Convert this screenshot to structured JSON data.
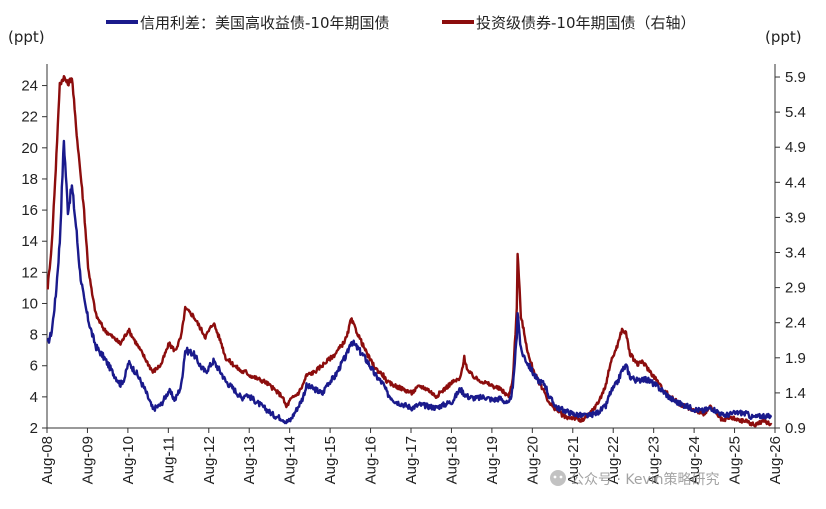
{
  "chart_data": {
    "type": "line",
    "title": "",
    "left_unit": "(ppt)",
    "right_unit": "(ppt)",
    "legend_position": "top",
    "x_range": [
      "2008-08",
      "2026-08"
    ],
    "x_tick_labels": [
      "Aug-08",
      "Aug-09",
      "Aug-10",
      "Aug-11",
      "Aug-12",
      "Aug-13",
      "Aug-14",
      "Aug-15",
      "Aug-16",
      "Aug-17",
      "Aug-18",
      "Aug-19",
      "Aug-20",
      "Aug-21",
      "Aug-22",
      "Aug-23",
      "Aug-24",
      "Aug-25",
      "Aug-26"
    ],
    "y_left": {
      "min": 2,
      "max": 25,
      "ticks": [
        2,
        4,
        6,
        8,
        10,
        12,
        14,
        16,
        18,
        20,
        22,
        24
      ]
    },
    "y_right": {
      "min": 0.9,
      "max": 6.0,
      "ticks": [
        "0.9",
        "1.4",
        "1.9",
        "2.4",
        "2.9",
        "3.4",
        "3.9",
        "4.4",
        "4.9",
        "5.4",
        "5.9"
      ]
    },
    "grid": false,
    "series": [
      {
        "name": "信用利差：美国高收益债-10年期国债",
        "axis": "left",
        "color": "#1a1a8c",
        "x": [
          2008.6,
          2008.7,
          2008.8,
          2008.9,
          2009.0,
          2009.1,
          2009.2,
          2009.3,
          2009.4,
          2009.5,
          2009.6,
          2009.7,
          2009.8,
          2010.0,
          2010.2,
          2010.4,
          2010.5,
          2010.6,
          2010.8,
          2011.0,
          2011.2,
          2011.4,
          2011.6,
          2011.75,
          2011.9,
          2012.0,
          2012.2,
          2012.4,
          2012.5,
          2012.7,
          2012.9,
          2013.0,
          2013.2,
          2013.4,
          2013.5,
          2013.6,
          2013.8,
          2014.0,
          2014.2,
          2014.4,
          2014.5,
          2014.6,
          2014.8,
          2014.9,
          2015.0,
          2015.2,
          2015.4,
          2015.5,
          2015.7,
          2015.9,
          2016.0,
          2016.1,
          2016.3,
          2016.5,
          2016.7,
          2016.9,
          2017.0,
          2017.2,
          2017.4,
          2017.6,
          2017.8,
          2018.0,
          2018.2,
          2018.4,
          2018.6,
          2018.8,
          2018.9,
          2019.0,
          2019.2,
          2019.4,
          2019.6,
          2019.8,
          2020.0,
          2020.1,
          2020.2,
          2020.22,
          2020.3,
          2020.5,
          2020.7,
          2020.9,
          2021.0,
          2021.2,
          2021.4,
          2021.6,
          2021.8,
          2022.0,
          2022.2,
          2022.4,
          2022.5,
          2022.7,
          2022.8,
          2022.9,
          2023.0,
          2023.2,
          2023.3,
          2023.5,
          2023.7,
          2023.8,
          2024.0,
          2024.2,
          2024.4,
          2024.6,
          2024.8,
          2025.0,
          2025.2,
          2025.3,
          2025.5,
          2025.7,
          2025.9,
          2026.0,
          2026.1,
          2026.3,
          2026.5
        ],
        "y": [
          7.4,
          8.2,
          10.5,
          14.0,
          20.5,
          16.0,
          17.5,
          15.0,
          12.0,
          10.2,
          9.0,
          8.0,
          7.2,
          6.5,
          5.6,
          4.8,
          5.2,
          6.2,
          5.5,
          4.5,
          3.2,
          3.5,
          4.4,
          3.8,
          4.7,
          7.0,
          6.8,
          5.9,
          5.6,
          6.3,
          5.5,
          5.0,
          4.5,
          3.9,
          4.2,
          4.0,
          3.6,
          3.2,
          2.8,
          2.6,
          2.4,
          2.5,
          3.4,
          3.9,
          4.7,
          4.5,
          4.2,
          4.8,
          5.3,
          6.3,
          6.7,
          7.6,
          7.0,
          6.3,
          5.4,
          4.8,
          4.2,
          3.7,
          3.5,
          3.3,
          3.5,
          3.4,
          3.3,
          3.5,
          3.7,
          4.5,
          4.2,
          4.0,
          3.9,
          4.0,
          3.8,
          3.9,
          3.5,
          4.5,
          8.0,
          9.5,
          7.0,
          6.0,
          5.1,
          4.8,
          4.0,
          3.3,
          3.1,
          2.9,
          2.8,
          2.8,
          3.0,
          3.4,
          4.2,
          5.0,
          5.7,
          6.0,
          5.3,
          5.0,
          5.2,
          5.0,
          4.6,
          4.4,
          3.9,
          3.6,
          3.4,
          3.2,
          3.1,
          3.3,
          3.0,
          2.8,
          2.9,
          3.0,
          2.9,
          2.7,
          2.7,
          2.8,
          2.7
        ]
      },
      {
        "name": "投资级债券-10年期国债（右轴）",
        "axis": "right",
        "color": "#8c0d0d",
        "x": [
          2008.6,
          2008.7,
          2008.8,
          2008.9,
          2009.0,
          2009.1,
          2009.2,
          2009.3,
          2009.4,
          2009.5,
          2009.6,
          2009.7,
          2009.8,
          2010.0,
          2010.2,
          2010.4,
          2010.5,
          2010.6,
          2010.8,
          2011.0,
          2011.2,
          2011.4,
          2011.6,
          2011.75,
          2011.9,
          2012.0,
          2012.2,
          2012.4,
          2012.5,
          2012.7,
          2012.9,
          2013.0,
          2013.2,
          2013.4,
          2013.5,
          2013.6,
          2013.8,
          2014.0,
          2014.2,
          2014.4,
          2014.5,
          2014.6,
          2014.8,
          2014.9,
          2015.0,
          2015.2,
          2015.4,
          2015.5,
          2015.7,
          2015.9,
          2016.0,
          2016.1,
          2016.3,
          2016.5,
          2016.7,
          2016.9,
          2017.0,
          2017.2,
          2017.4,
          2017.6,
          2017.8,
          2018.0,
          2018.2,
          2018.4,
          2018.6,
          2018.8,
          2018.9,
          2019.0,
          2019.2,
          2019.4,
          2019.6,
          2019.8,
          2020.0,
          2020.1,
          2020.2,
          2020.22,
          2020.3,
          2020.5,
          2020.7,
          2020.9,
          2021.0,
          2021.2,
          2021.4,
          2021.6,
          2021.8,
          2022.0,
          2022.2,
          2022.4,
          2022.5,
          2022.7,
          2022.8,
          2022.9,
          2023.0,
          2023.2,
          2023.3,
          2023.5,
          2023.7,
          2023.8,
          2024.0,
          2024.2,
          2024.4,
          2024.6,
          2024.8,
          2025.0,
          2025.2,
          2025.3,
          2025.5,
          2025.7,
          2025.9,
          2026.0,
          2026.1,
          2026.3,
          2026.5
        ],
        "y": [
          2.9,
          3.5,
          4.6,
          5.8,
          5.9,
          5.8,
          5.9,
          5.2,
          4.6,
          4.0,
          3.2,
          2.8,
          2.5,
          2.3,
          2.2,
          2.1,
          2.2,
          2.3,
          2.1,
          1.9,
          1.7,
          1.8,
          2.1,
          2.0,
          2.2,
          2.6,
          2.5,
          2.3,
          2.2,
          2.4,
          2.1,
          1.9,
          1.8,
          1.7,
          1.7,
          1.65,
          1.6,
          1.55,
          1.45,
          1.35,
          1.2,
          1.3,
          1.4,
          1.5,
          1.65,
          1.7,
          1.8,
          1.85,
          1.95,
          2.1,
          2.2,
          2.45,
          2.2,
          1.95,
          1.75,
          1.65,
          1.55,
          1.5,
          1.45,
          1.4,
          1.5,
          1.45,
          1.35,
          1.45,
          1.55,
          1.6,
          1.9,
          1.7,
          1.6,
          1.55,
          1.5,
          1.45,
          1.35,
          1.6,
          2.6,
          3.4,
          2.5,
          1.9,
          1.6,
          1.4,
          1.25,
          1.15,
          1.05,
          1.05,
          1.0,
          1.1,
          1.25,
          1.5,
          1.8,
          2.1,
          2.3,
          2.25,
          1.95,
          1.8,
          1.85,
          1.7,
          1.55,
          1.45,
          1.35,
          1.25,
          1.2,
          1.15,
          1.1,
          1.2,
          1.05,
          1.0,
          1.05,
          1.0,
          1.0,
          0.95,
          0.95,
          1.0,
          0.95
        ]
      }
    ]
  },
  "watermark": "公众号 · Kevin策略研究"
}
